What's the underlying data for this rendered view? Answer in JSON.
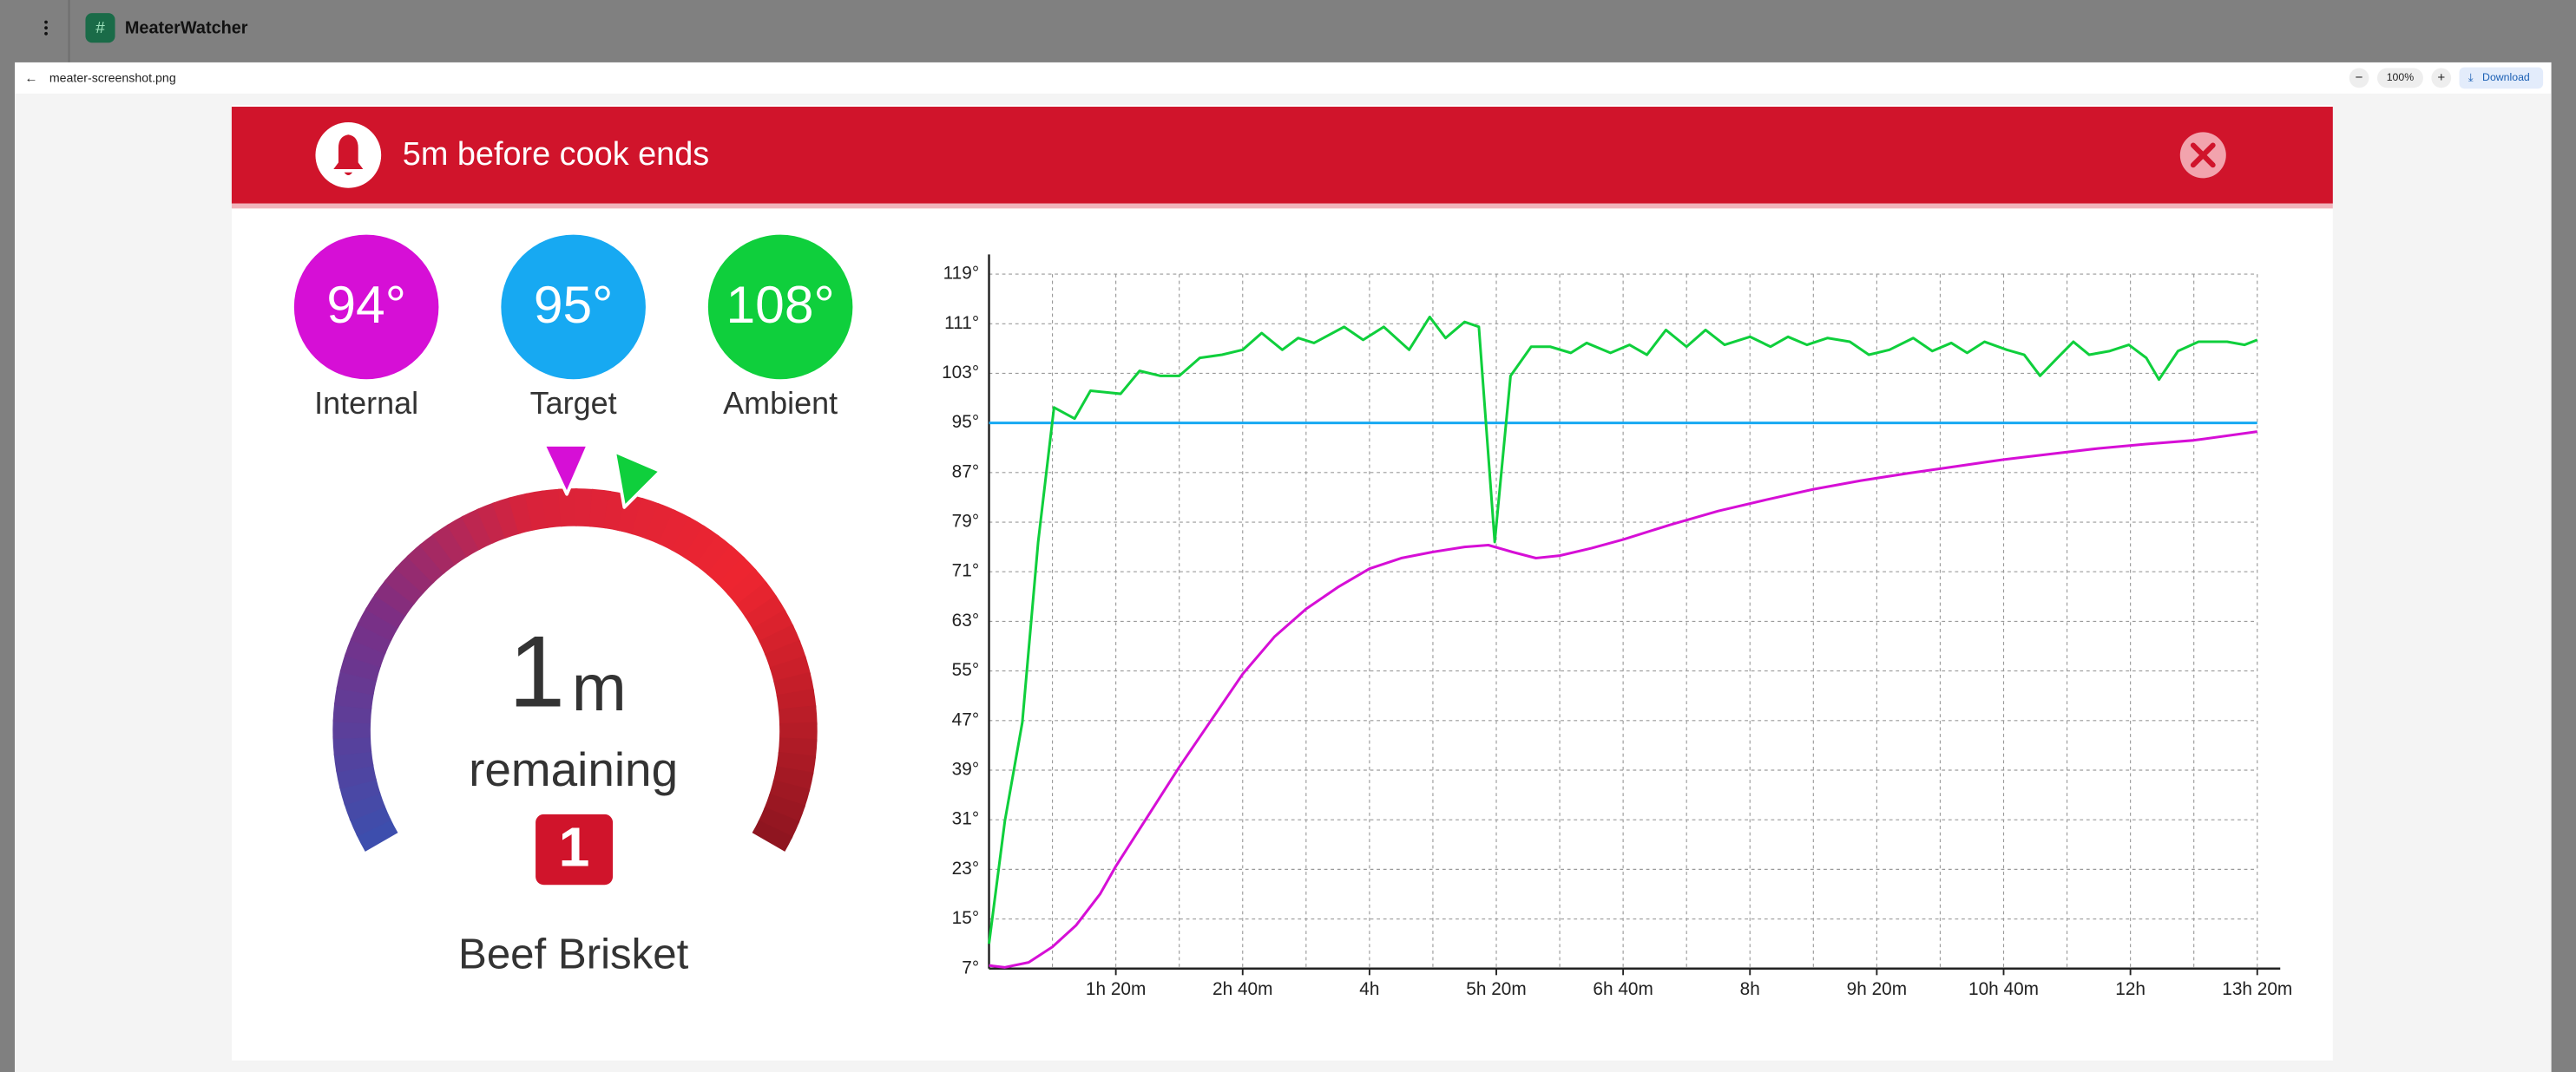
{
  "app": {
    "title": "MeaterWatcher"
  },
  "viewer": {
    "file_name": "meater-screenshot.png",
    "zoom": "100%",
    "download": "Download"
  },
  "alert": {
    "message": "5m before cook ends"
  },
  "probe": {
    "readings": [
      {
        "value": "94°"
      },
      {
        "value": "95°"
      },
      {
        "value": "108°"
      }
    ],
    "time_remaining": "1",
    "time_unit": "m",
    "remaining_label": "remaining",
    "probe_number": "1",
    "cook_name": "Beef Brisket"
  },
  "chart_data": {
    "type": "line",
    "grid": true,
    "xlim": [
      0,
      800
    ],
    "ylim": [
      7,
      119
    ],
    "xticks": [
      {
        "value": 80,
        "label": "1h 20m"
      },
      {
        "value": 160,
        "label": "2h 40m"
      },
      {
        "value": 240,
        "label": "4h"
      },
      {
        "value": 320,
        "label": "5h 20m"
      },
      {
        "value": 400,
        "label": "6h 40m"
      },
      {
        "value": 480,
        "label": "8h"
      },
      {
        "value": 560,
        "label": "9h 20m"
      },
      {
        "value": 640,
        "label": "10h 40m"
      },
      {
        "value": 720,
        "label": "12h"
      },
      {
        "value": 800,
        "label": "13h 20m"
      }
    ],
    "minor_xticks": [
      40,
      120,
      200,
      280,
      360,
      440,
      520,
      600,
      680,
      760
    ],
    "yticks": [
      {
        "value": 7,
        "label": "7°"
      },
      {
        "value": 15,
        "label": "15°"
      },
      {
        "value": 23,
        "label": "23°"
      },
      {
        "value": 31,
        "label": "31°"
      },
      {
        "value": 39,
        "label": "39°"
      },
      {
        "value": 47,
        "label": "47°"
      },
      {
        "value": 55,
        "label": "55°"
      },
      {
        "value": 63,
        "label": "63°"
      },
      {
        "value": 71,
        "label": "71°"
      },
      {
        "value": 79,
        "label": "79°"
      },
      {
        "value": 87,
        "label": "87°"
      },
      {
        "value": 95,
        "label": "95°"
      },
      {
        "value": 103,
        "label": "103°"
      },
      {
        "value": 111,
        "label": "111°"
      },
      {
        "value": 119,
        "label": "119°"
      }
    ],
    "series": [
      {
        "name": "Internal",
        "color": "#d60fd6",
        "x": [
          0,
          10,
          25,
          40,
          55,
          70,
          80,
          100,
          120,
          140,
          160,
          180,
          200,
          220,
          240,
          260,
          280,
          300,
          315,
          330,
          345,
          360,
          380,
          400,
          430,
          460,
          490,
          520,
          550,
          580,
          610,
          640,
          670,
          700,
          730,
          760,
          800
        ],
        "values": [
          7.5,
          7.2,
          8,
          10.5,
          14,
          19,
          23.5,
          31.5,
          39.5,
          47,
          54.5,
          60.5,
          65,
          68.5,
          71.5,
          73.2,
          74.2,
          75,
          75.3,
          74.2,
          73.2,
          73.6,
          74.8,
          76.2,
          78.6,
          80.8,
          82.6,
          84.3,
          85.7,
          86.9,
          88,
          89.1,
          90,
          90.9,
          91.6,
          92.2,
          93.6
        ]
      },
      {
        "name": "Target",
        "color": "#17a9f2",
        "x": [
          0,
          800
        ],
        "values": [
          95,
          95
        ]
      },
      {
        "name": "Ambient",
        "color": "#0fcf3c",
        "x": [
          0,
          10,
          21,
          31,
          41,
          54,
          64,
          83,
          95,
          108,
          120,
          133,
          147,
          160,
          172,
          185,
          195,
          205,
          224,
          236,
          249,
          265,
          278,
          288,
          300,
          309,
          319,
          329,
          342,
          354,
          367,
          377,
          392,
          404,
          415,
          427,
          440,
          452,
          464,
          480,
          493,
          504,
          516,
          529,
          543,
          555,
          568,
          583,
          595,
          607,
          617,
          628,
          642,
          653,
          663,
          674,
          684,
          694,
          707,
          719,
          730,
          738,
          750,
          763,
          781,
          792,
          800
        ],
        "values": [
          11,
          30.8,
          46.7,
          75.8,
          97.5,
          95.7,
          100.2,
          99.7,
          103.4,
          102.6,
          102.6,
          105.5,
          106,
          106.8,
          109.5,
          106.8,
          108.7,
          107.9,
          110.5,
          108.4,
          110.5,
          106.8,
          112.1,
          108.7,
          111.3,
          110.5,
          75.8,
          102.6,
          107.3,
          107.3,
          106.3,
          107.9,
          106.3,
          107.6,
          106,
          110,
          107.3,
          110,
          107.6,
          108.9,
          107.3,
          108.9,
          107.6,
          108.7,
          108.1,
          106,
          106.8,
          108.7,
          106.6,
          107.9,
          106.3,
          108.1,
          106.8,
          106,
          102.6,
          105.5,
          108.1,
          106,
          106.6,
          107.6,
          105.5,
          102,
          106.6,
          108.1,
          108.1,
          107.6,
          108.4
        ]
      }
    ]
  }
}
